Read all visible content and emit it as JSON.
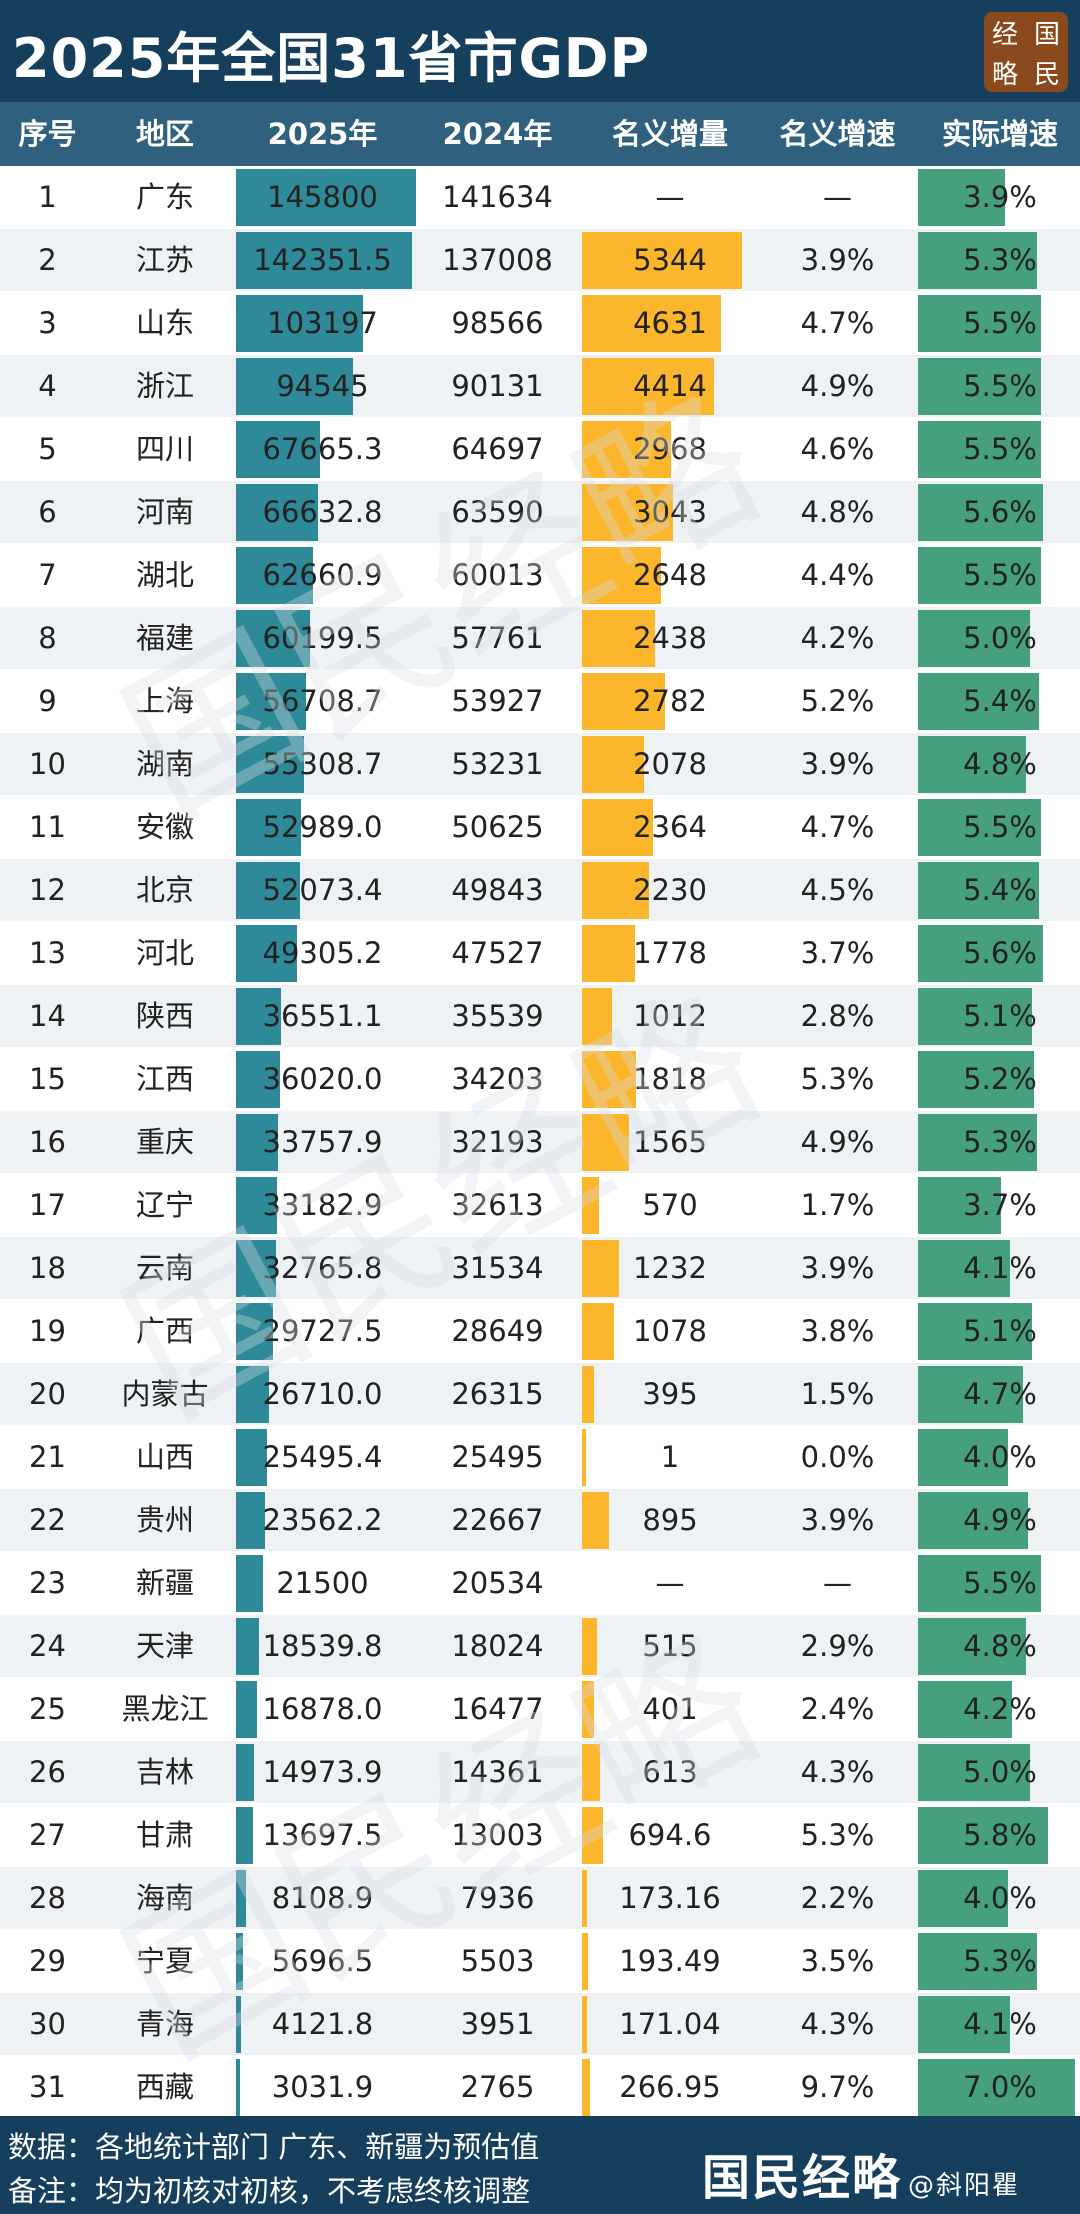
{
  "header": {
    "title": "2025年全国31省市GDP",
    "logo_chars": [
      "经",
      "国",
      "略",
      "民"
    ]
  },
  "columns": [
    "序号",
    "地区",
    "2025年",
    "2024年",
    "名义增量",
    "名义增速",
    "实际增速"
  ],
  "footer": {
    "note1": "数据：各地统计部门  广东、新疆为预估值",
    "note2": "备注：均为初核对初核，不考虑终核调整",
    "brand": "国民经略",
    "brand_suffix": "@斜阳瞿"
  },
  "watermark_text": "国民经略",
  "colors": {
    "title_bg": "#163f5e",
    "header_bg": "#2f617f",
    "gdp_bar": "#2e8a98",
    "increment_bar": "#fbb62b",
    "real_growth_bar": "#46a07e"
  },
  "chart_data": {
    "type": "table",
    "title": "2025年全国31省市GDP",
    "rows": [
      {
        "rank": "1",
        "region": "广东",
        "gdp2025": "145800",
        "gdp2024": "141634",
        "increment": "—",
        "nominal": "—",
        "real": "3.9%"
      },
      {
        "rank": "2",
        "region": "江苏",
        "gdp2025": "142351.5",
        "gdp2024": "137008",
        "increment": "5344",
        "nominal": "3.9%",
        "real": "5.3%"
      },
      {
        "rank": "3",
        "region": "山东",
        "gdp2025": "103197",
        "gdp2024": "98566",
        "increment": "4631",
        "nominal": "4.7%",
        "real": "5.5%"
      },
      {
        "rank": "4",
        "region": "浙江",
        "gdp2025": "94545",
        "gdp2024": "90131",
        "increment": "4414",
        "nominal": "4.9%",
        "real": "5.5%"
      },
      {
        "rank": "5",
        "region": "四川",
        "gdp2025": "67665.3",
        "gdp2024": "64697",
        "increment": "2968",
        "nominal": "4.6%",
        "real": "5.5%"
      },
      {
        "rank": "6",
        "region": "河南",
        "gdp2025": "66632.8",
        "gdp2024": "63590",
        "increment": "3043",
        "nominal": "4.8%",
        "real": "5.6%"
      },
      {
        "rank": "7",
        "region": "湖北",
        "gdp2025": "62660.9",
        "gdp2024": "60013",
        "increment": "2648",
        "nominal": "4.4%",
        "real": "5.5%"
      },
      {
        "rank": "8",
        "region": "福建",
        "gdp2025": "60199.5",
        "gdp2024": "57761",
        "increment": "2438",
        "nominal": "4.2%",
        "real": "5.0%"
      },
      {
        "rank": "9",
        "region": "上海",
        "gdp2025": "56708.7",
        "gdp2024": "53927",
        "increment": "2782",
        "nominal": "5.2%",
        "real": "5.4%"
      },
      {
        "rank": "10",
        "region": "湖南",
        "gdp2025": "55308.7",
        "gdp2024": "53231",
        "increment": "2078",
        "nominal": "3.9%",
        "real": "4.8%"
      },
      {
        "rank": "11",
        "region": "安徽",
        "gdp2025": "52989.0",
        "gdp2024": "50625",
        "increment": "2364",
        "nominal": "4.7%",
        "real": "5.5%"
      },
      {
        "rank": "12",
        "region": "北京",
        "gdp2025": "52073.4",
        "gdp2024": "49843",
        "increment": "2230",
        "nominal": "4.5%",
        "real": "5.4%"
      },
      {
        "rank": "13",
        "region": "河北",
        "gdp2025": "49305.2",
        "gdp2024": "47527",
        "increment": "1778",
        "nominal": "3.7%",
        "real": "5.6%"
      },
      {
        "rank": "14",
        "region": "陕西",
        "gdp2025": "36551.1",
        "gdp2024": "35539",
        "increment": "1012",
        "nominal": "2.8%",
        "real": "5.1%"
      },
      {
        "rank": "15",
        "region": "江西",
        "gdp2025": "36020.0",
        "gdp2024": "34203",
        "increment": "1818",
        "nominal": "5.3%",
        "real": "5.2%"
      },
      {
        "rank": "16",
        "region": "重庆",
        "gdp2025": "33757.9",
        "gdp2024": "32193",
        "increment": "1565",
        "nominal": "4.9%",
        "real": "5.3%"
      },
      {
        "rank": "17",
        "region": "辽宁",
        "gdp2025": "33182.9",
        "gdp2024": "32613",
        "increment": "570",
        "nominal": "1.7%",
        "real": "3.7%"
      },
      {
        "rank": "18",
        "region": "云南",
        "gdp2025": "32765.8",
        "gdp2024": "31534",
        "increment": "1232",
        "nominal": "3.9%",
        "real": "4.1%"
      },
      {
        "rank": "19",
        "region": "广西",
        "gdp2025": "29727.5",
        "gdp2024": "28649",
        "increment": "1078",
        "nominal": "3.8%",
        "real": "5.1%"
      },
      {
        "rank": "20",
        "region": "内蒙古",
        "gdp2025": "26710.0",
        "gdp2024": "26315",
        "increment": "395",
        "nominal": "1.5%",
        "real": "4.7%"
      },
      {
        "rank": "21",
        "region": "山西",
        "gdp2025": "25495.4",
        "gdp2024": "25495",
        "increment": "1",
        "nominal": "0.0%",
        "real": "4.0%"
      },
      {
        "rank": "22",
        "region": "贵州",
        "gdp2025": "23562.2",
        "gdp2024": "22667",
        "increment": "895",
        "nominal": "3.9%",
        "real": "4.9%"
      },
      {
        "rank": "23",
        "region": "新疆",
        "gdp2025": "21500",
        "gdp2024": "20534",
        "increment": "—",
        "nominal": "—",
        "real": "5.5%"
      },
      {
        "rank": "24",
        "region": "天津",
        "gdp2025": "18539.8",
        "gdp2024": "18024",
        "increment": "515",
        "nominal": "2.9%",
        "real": "4.8%"
      },
      {
        "rank": "25",
        "region": "黑龙江",
        "gdp2025": "16878.0",
        "gdp2024": "16477",
        "increment": "401",
        "nominal": "2.4%",
        "real": "4.2%"
      },
      {
        "rank": "26",
        "region": "吉林",
        "gdp2025": "14973.9",
        "gdp2024": "14361",
        "increment": "613",
        "nominal": "4.3%",
        "real": "5.0%"
      },
      {
        "rank": "27",
        "region": "甘肃",
        "gdp2025": "13697.5",
        "gdp2024": "13003",
        "increment": "694.6",
        "nominal": "5.3%",
        "real": "5.8%"
      },
      {
        "rank": "28",
        "region": "海南",
        "gdp2025": "8108.9",
        "gdp2024": "7936",
        "increment": "173.16",
        "nominal": "2.2%",
        "real": "4.0%"
      },
      {
        "rank": "29",
        "region": "宁夏",
        "gdp2025": "5696.5",
        "gdp2024": "5503",
        "increment": "193.49",
        "nominal": "3.5%",
        "real": "5.3%"
      },
      {
        "rank": "30",
        "region": "青海",
        "gdp2025": "4121.8",
        "gdp2024": "3951",
        "increment": "171.04",
        "nominal": "4.3%",
        "real": "4.1%"
      },
      {
        "rank": "31",
        "region": "西藏",
        "gdp2025": "3031.9",
        "gdp2024": "2765",
        "increment": "266.95",
        "nominal": "9.7%",
        "real": "7.0%"
      }
    ]
  }
}
